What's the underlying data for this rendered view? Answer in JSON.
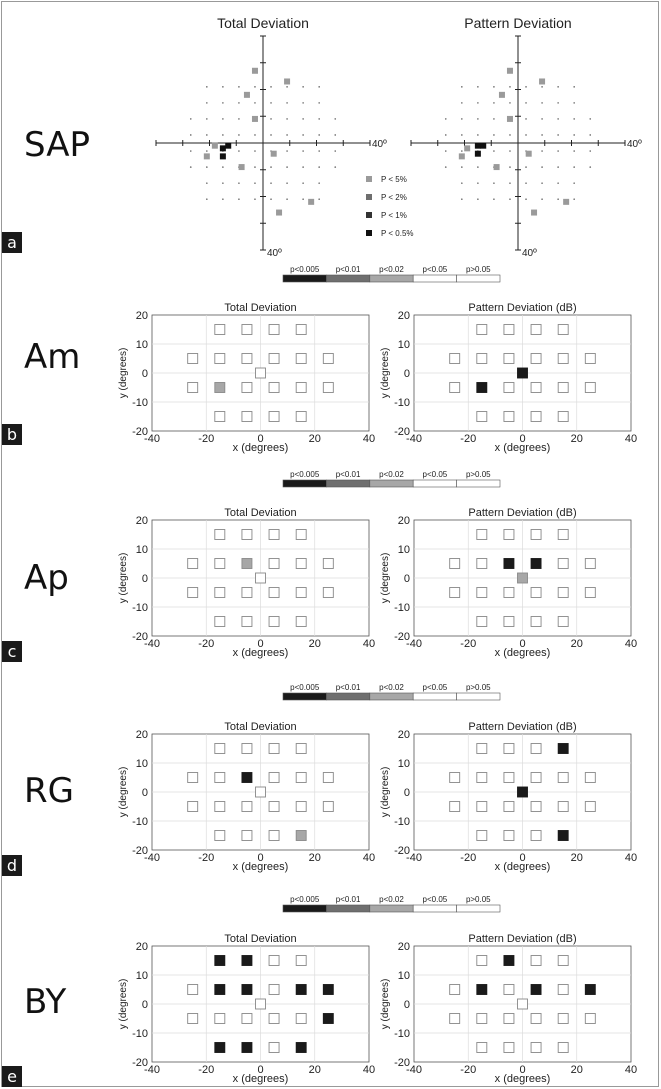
{
  "rows": [
    {
      "label": "SAP",
      "letter": "a"
    },
    {
      "label": "Am",
      "letter": "b"
    },
    {
      "label": "Ap",
      "letter": "c"
    },
    {
      "label": "RG",
      "letter": "d"
    },
    {
      "label": "BY",
      "letter": "e"
    }
  ],
  "sap": {
    "left_title": "Total Deviation",
    "right_title": "Pattern Deviation",
    "axis_label_right": "40º",
    "axis_label_bottom": "40º",
    "legend": [
      {
        "label": "P < 5%",
        "color": "#9a9a9a"
      },
      {
        "label": "P < 2%",
        "color": "#6e6e6e"
      },
      {
        "label": "P < 1%",
        "color": "#333333"
      },
      {
        "label": "P < 0.5%",
        "color": "#111111"
      }
    ]
  },
  "colorbar": {
    "labels": [
      "p<0.005",
      "p<0.01",
      "p<0.02",
      "p<0.05",
      "p>0.05"
    ],
    "colors": [
      "#1a1a1a",
      "#6f6f6f",
      "#a7a7a7",
      "#ffffff",
      "#ffffff"
    ]
  },
  "grid_titles": {
    "left": "Total Deviation",
    "right": "Pattern Deviation (dB)"
  },
  "axis_text": {
    "xlabel": "x (degrees)",
    "ylabel": "y (degrees)"
  },
  "chart_data": {
    "type": "heatmap",
    "xlim": [
      -40,
      40
    ],
    "ylim": [
      -20,
      20
    ],
    "x_ticks": [
      -40,
      -20,
      0,
      20,
      40
    ],
    "y_ticks": [
      -20,
      -10,
      0,
      10,
      20
    ],
    "grid": true,
    "level_codes": {
      "0": "p<0.005",
      "1": "p<0.01",
      "2": "p<0.02",
      "3": "p<0.05",
      "4": "p>0.05"
    },
    "locations": [
      [
        -15,
        15
      ],
      [
        -5,
        15
      ],
      [
        5,
        15
      ],
      [
        15,
        15
      ],
      [
        -25,
        5
      ],
      [
        -15,
        5
      ],
      [
        -5,
        5
      ],
      [
        5,
        5
      ],
      [
        15,
        5
      ],
      [
        25,
        5
      ],
      [
        -25,
        -5
      ],
      [
        -15,
        -5
      ],
      [
        -5,
        -5
      ],
      [
        5,
        -5
      ],
      [
        15,
        -5
      ],
      [
        25,
        -5
      ],
      [
        -15,
        -15
      ],
      [
        -5,
        -15
      ],
      [
        5,
        -15
      ],
      [
        15,
        -15
      ]
    ],
    "panels": [
      {
        "row": "Am",
        "plot": "Total Deviation",
        "levels": [
          4,
          4,
          4,
          4,
          4,
          4,
          4,
          4,
          4,
          4,
          4,
          2,
          4,
          4,
          4,
          4,
          4,
          4,
          4,
          4
        ],
        "fixation": 4
      },
      {
        "row": "Am",
        "plot": "Pattern Deviation (dB)",
        "levels": [
          4,
          4,
          4,
          4,
          4,
          4,
          4,
          4,
          4,
          4,
          4,
          0,
          4,
          4,
          4,
          4,
          4,
          4,
          4,
          4
        ],
        "fixation": 0
      },
      {
        "row": "Ap",
        "plot": "Total Deviation",
        "levels": [
          4,
          4,
          4,
          4,
          4,
          4,
          2,
          4,
          4,
          4,
          4,
          4,
          4,
          4,
          4,
          4,
          4,
          4,
          4,
          4
        ],
        "fixation": 4
      },
      {
        "row": "Ap",
        "plot": "Pattern Deviation (dB)",
        "levels": [
          4,
          4,
          4,
          4,
          4,
          4,
          0,
          0,
          4,
          4,
          4,
          4,
          4,
          4,
          4,
          4,
          4,
          4,
          4,
          4
        ],
        "fixation": 2
      },
      {
        "row": "RG",
        "plot": "Total Deviation",
        "levels": [
          4,
          4,
          4,
          4,
          4,
          4,
          0,
          4,
          4,
          4,
          4,
          4,
          4,
          4,
          4,
          4,
          4,
          4,
          4,
          2
        ],
        "fixation": 4
      },
      {
        "row": "RG",
        "plot": "Pattern Deviation (dB)",
        "levels": [
          4,
          4,
          4,
          0,
          4,
          4,
          4,
          4,
          4,
          4,
          4,
          4,
          4,
          4,
          4,
          4,
          4,
          4,
          4,
          0
        ],
        "fixation": 0
      },
      {
        "row": "BY",
        "plot": "Total Deviation",
        "levels": [
          0,
          0,
          4,
          4,
          4,
          0,
          0,
          4,
          0,
          0,
          4,
          4,
          4,
          4,
          4,
          0,
          0,
          0,
          4,
          0
        ],
        "fixation": 4
      },
      {
        "row": "BY",
        "plot": "Pattern Deviation (dB)",
        "levels": [
          4,
          0,
          4,
          4,
          4,
          0,
          4,
          0,
          4,
          0,
          4,
          4,
          4,
          4,
          4,
          4,
          4,
          4,
          4,
          4
        ],
        "fixation": 4
      }
    ],
    "sap_points": {
      "x_range": [
        -40,
        40
      ],
      "y_range": [
        -40,
        40
      ],
      "total_deviation": [
        {
          "x": -3,
          "y": 27,
          "level": "P < 5%"
        },
        {
          "x": 9,
          "y": 23,
          "level": "P < 5%"
        },
        {
          "x": -6,
          "y": 18,
          "level": "P < 5%"
        },
        {
          "x": -3,
          "y": 9,
          "level": "P < 5%"
        },
        {
          "x": -18,
          "y": -1,
          "level": "P < 5%"
        },
        {
          "x": -15,
          "y": -2,
          "level": "P < 0.5%"
        },
        {
          "x": -13,
          "y": -1,
          "level": "P < 0.5%"
        },
        {
          "x": -15,
          "y": -5,
          "level": "P < 0.5%"
        },
        {
          "x": -21,
          "y": -5,
          "level": "P < 5%"
        },
        {
          "x": 4,
          "y": -4,
          "level": "P < 5%"
        },
        {
          "x": -8,
          "y": -9,
          "level": "P < 5%"
        },
        {
          "x": 6,
          "y": -26,
          "level": "P < 5%"
        },
        {
          "x": 18,
          "y": -22,
          "level": "P < 5%"
        }
      ],
      "pattern_deviation": [
        {
          "x": -3,
          "y": 27,
          "level": "P < 5%"
        },
        {
          "x": 9,
          "y": 23,
          "level": "P < 5%"
        },
        {
          "x": -6,
          "y": 18,
          "level": "P < 5%"
        },
        {
          "x": -3,
          "y": 9,
          "level": "P < 5%"
        },
        {
          "x": -15,
          "y": -1,
          "level": "P < 0.5%"
        },
        {
          "x": -13,
          "y": -1,
          "level": "P < 0.5%"
        },
        {
          "x": -15,
          "y": -4,
          "level": "P < 0.5%"
        },
        {
          "x": -19,
          "y": -2,
          "level": "P < 5%"
        },
        {
          "x": -21,
          "y": -5,
          "level": "P < 5%"
        },
        {
          "x": 4,
          "y": -4,
          "level": "P < 5%"
        },
        {
          "x": -8,
          "y": -9,
          "level": "P < 5%"
        },
        {
          "x": 6,
          "y": -26,
          "level": "P < 5%"
        },
        {
          "x": 18,
          "y": -22,
          "level": "P < 5%"
        }
      ]
    }
  }
}
